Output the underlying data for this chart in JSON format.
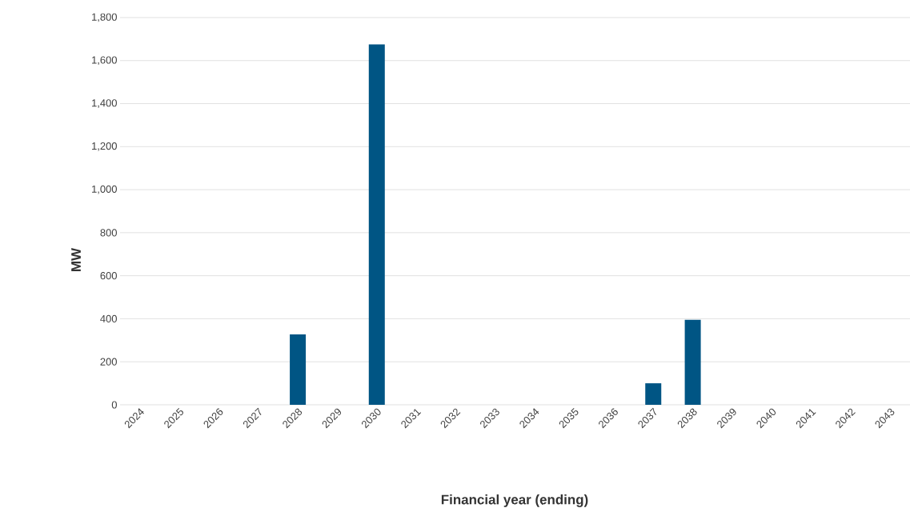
{
  "chart_data": {
    "type": "bar",
    "xlabel": "Financial year (ending)",
    "ylabel": "MW",
    "categories": [
      "2024",
      "2025",
      "2026",
      "2027",
      "2028",
      "2029",
      "2030",
      "2031",
      "2032",
      "2033",
      "2034",
      "2035",
      "2036",
      "2037",
      "2038",
      "2039",
      "2040",
      "2041",
      "2042",
      "2043"
    ],
    "values": [
      0,
      0,
      0,
      0,
      327,
      0,
      1675,
      0,
      0,
      0,
      0,
      0,
      0,
      100,
      395,
      0,
      0,
      0,
      0,
      0
    ],
    "color": "#005584",
    "ylim": [
      0,
      1800
    ],
    "yticks": [
      0,
      200,
      400,
      600,
      800,
      {
        "value": 1000,
        "label": "1,000"
      },
      {
        "value": 1200,
        "label": "1,200"
      },
      {
        "value": 1400,
        "label": "1,400"
      },
      {
        "value": 1600,
        "label": "1,600"
      },
      {
        "value": 1800,
        "label": "1,800"
      }
    ],
    "grid": "y"
  }
}
